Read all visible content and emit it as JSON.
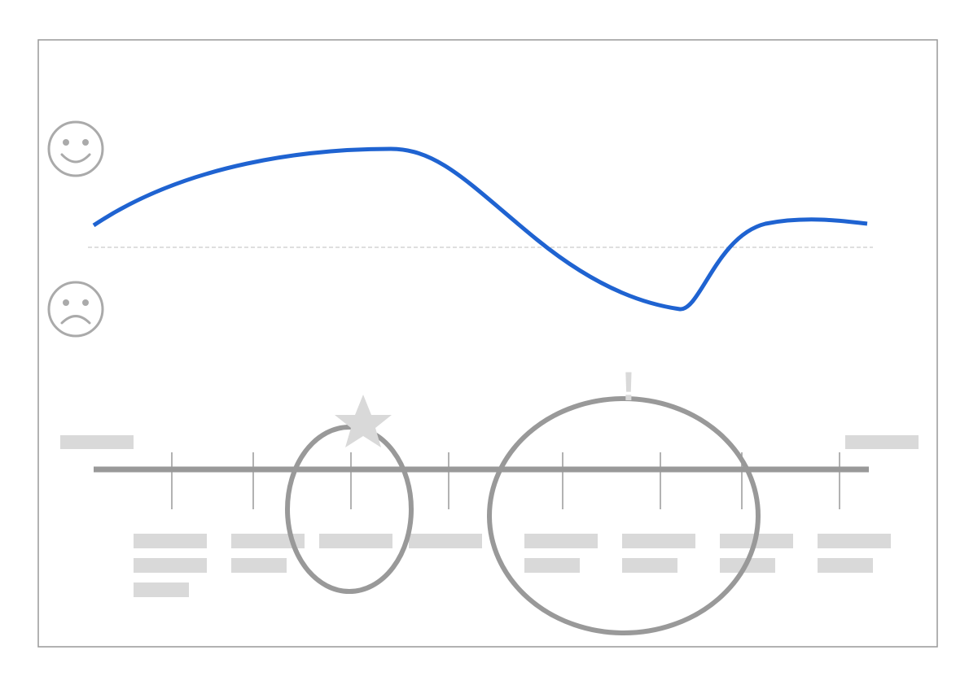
{
  "alert_mark": "!"
}
